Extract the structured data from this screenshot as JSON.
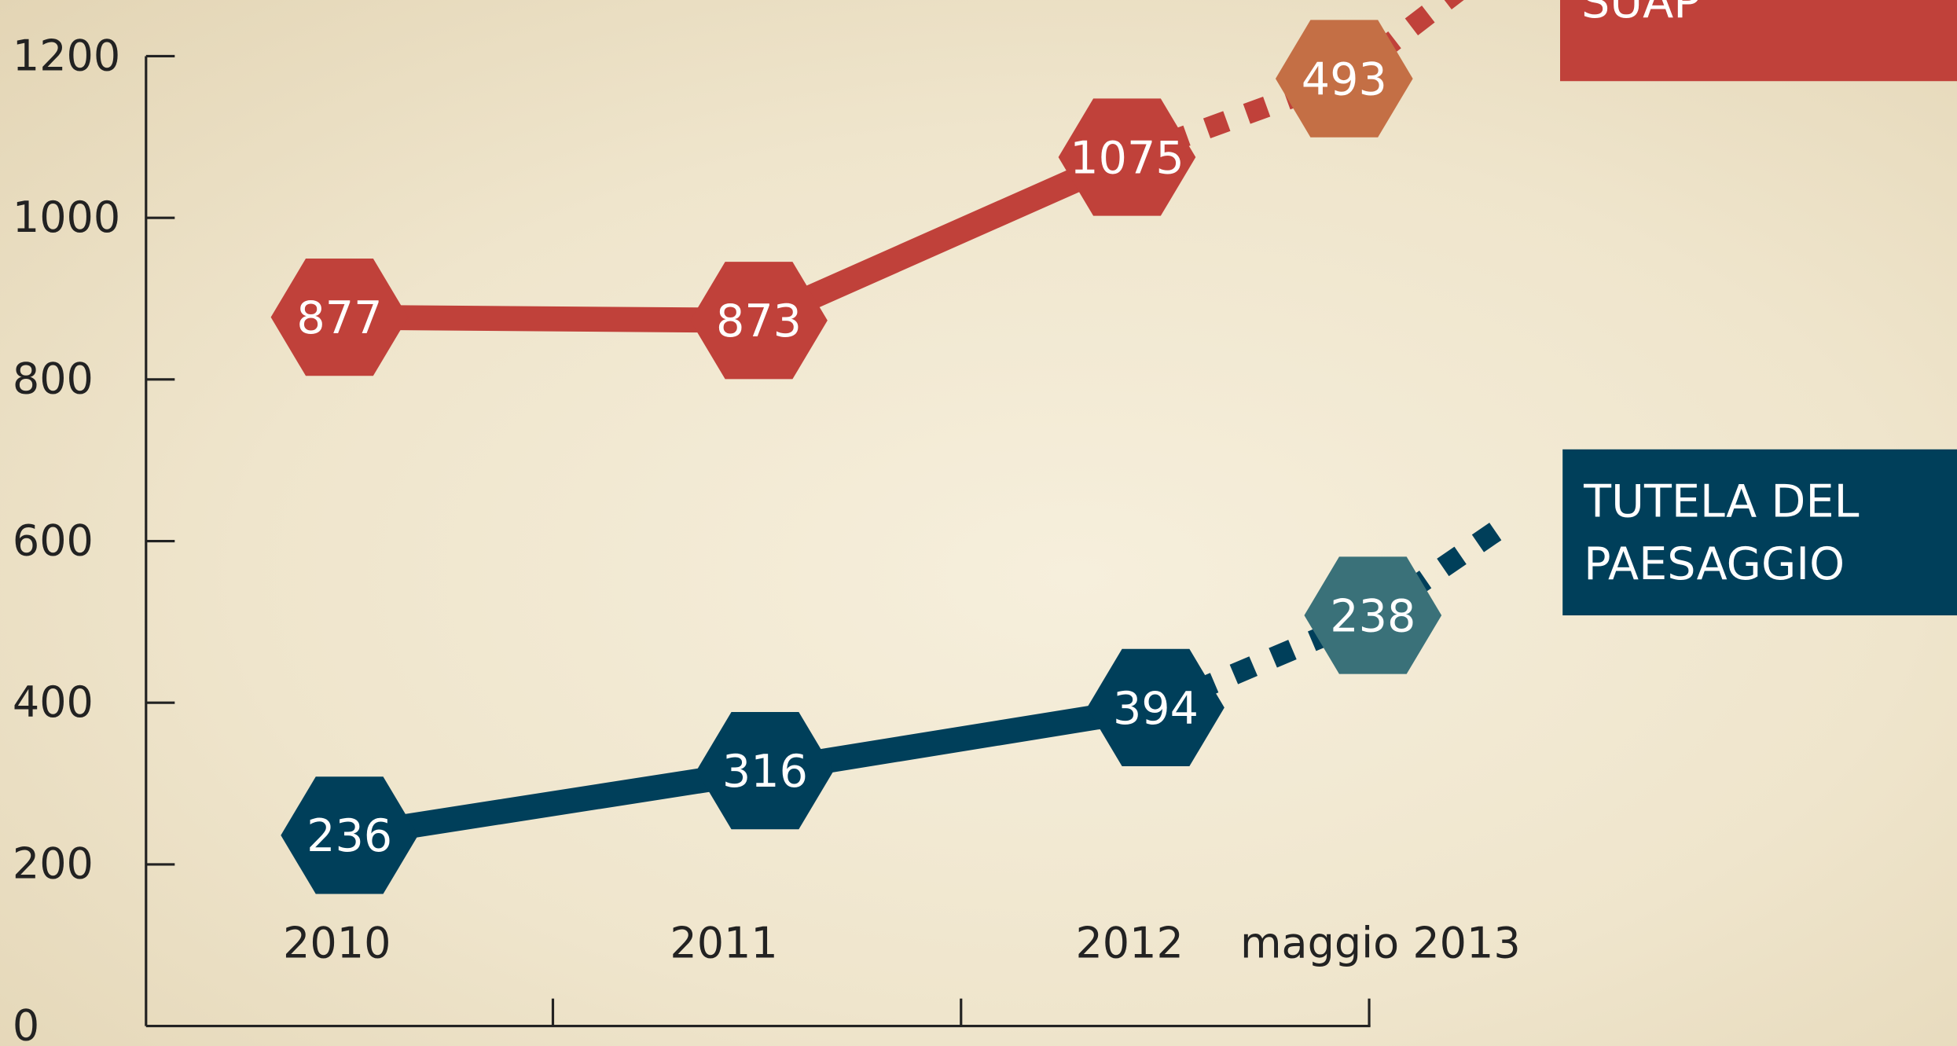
{
  "chart_data": {
    "type": "line",
    "categories": [
      "2010",
      "2011",
      "2012",
      "maggio 2013"
    ],
    "series": [
      {
        "name": "SUAP",
        "color": "#c0413a",
        "values": [
          877,
          873,
          1075,
          null
        ]
      },
      {
        "name": "TUTELA DEL PAESAGGIO",
        "color": "#003f5a",
        "values": [
          236,
          316,
          394,
          null
        ]
      }
    ],
    "partial": {
      "category": "maggio 2013",
      "values": [
        493,
        238
      ],
      "colors": [
        "#c46f45",
        "#3a7179"
      ]
    },
    "ylim": [
      0,
      1200
    ],
    "yticks": [
      0,
      200,
      400,
      600,
      800,
      1000,
      1200
    ]
  }
}
